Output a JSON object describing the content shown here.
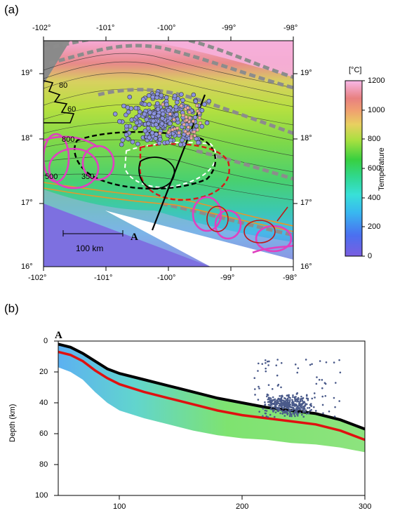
{
  "figure": {
    "panel_a_label": "(a)",
    "panel_b_label": "(b)"
  },
  "map": {
    "lon_ticks": [
      "-102°",
      "-101°",
      "-100°",
      "-99°",
      "-98°"
    ],
    "lat_ticks": [
      "19°",
      "18°",
      "17°",
      "16°"
    ],
    "scale_bar_label": "100 km",
    "profile_point_label": "A",
    "contour_labels": [
      "80",
      "60",
      "800",
      "500",
      "350"
    ],
    "colorbar": {
      "unit": "[°C]",
      "title": "Temperature",
      "ticks": [
        "1200",
        "1000",
        "800",
        "600",
        "400",
        "200",
        "0"
      ]
    },
    "colors": {
      "seismicity_dot": "#8b93e0",
      "slow_slip_red": "#e01818",
      "tremor_magenta": "#e040c0",
      "trench_orange": "#e8962a",
      "dashed_gray": "#8c8c8c"
    }
  },
  "chart_data": {
    "type": "scatter",
    "profile_label": "A",
    "xlim": [
      50,
      300
    ],
    "ylim": [
      100,
      0
    ],
    "x_ticks": [
      "100",
      "200",
      "300"
    ],
    "y_ticks": [
      "0",
      "20",
      "40",
      "60",
      "80",
      "100"
    ],
    "ylabel": "Depth (km)",
    "slab_top": {
      "x": [
        50,
        60,
        70,
        80,
        90,
        100,
        120,
        140,
        160,
        180,
        200,
        220,
        240,
        260,
        280,
        300
      ],
      "y": [
        2,
        4,
        8,
        13,
        18,
        21,
        25,
        29,
        33,
        37,
        40,
        43,
        45,
        47,
        51,
        57
      ]
    },
    "red_isotherm": {
      "x": [
        50,
        60,
        70,
        80,
        90,
        100,
        120,
        140,
        160,
        180,
        200,
        220,
        240,
        260,
        280,
        300
      ],
      "y": [
        7,
        9,
        13,
        19,
        24,
        28,
        33,
        37,
        41,
        45,
        48,
        50,
        52,
        54,
        58,
        64
      ]
    },
    "slab_bottom": {
      "x": [
        50,
        60,
        70,
        80,
        90,
        100,
        120,
        140,
        160,
        180,
        200,
        220,
        240,
        260,
        280,
        300
      ],
      "y": [
        17,
        20,
        25,
        33,
        40,
        45,
        50,
        54,
        58,
        61,
        63,
        64,
        66,
        67,
        69,
        72
      ]
    },
    "earthquake_cluster": {
      "x_range": [
        220,
        260
      ],
      "y_range": [
        30,
        50
      ],
      "center": [
        238,
        42
      ]
    }
  }
}
